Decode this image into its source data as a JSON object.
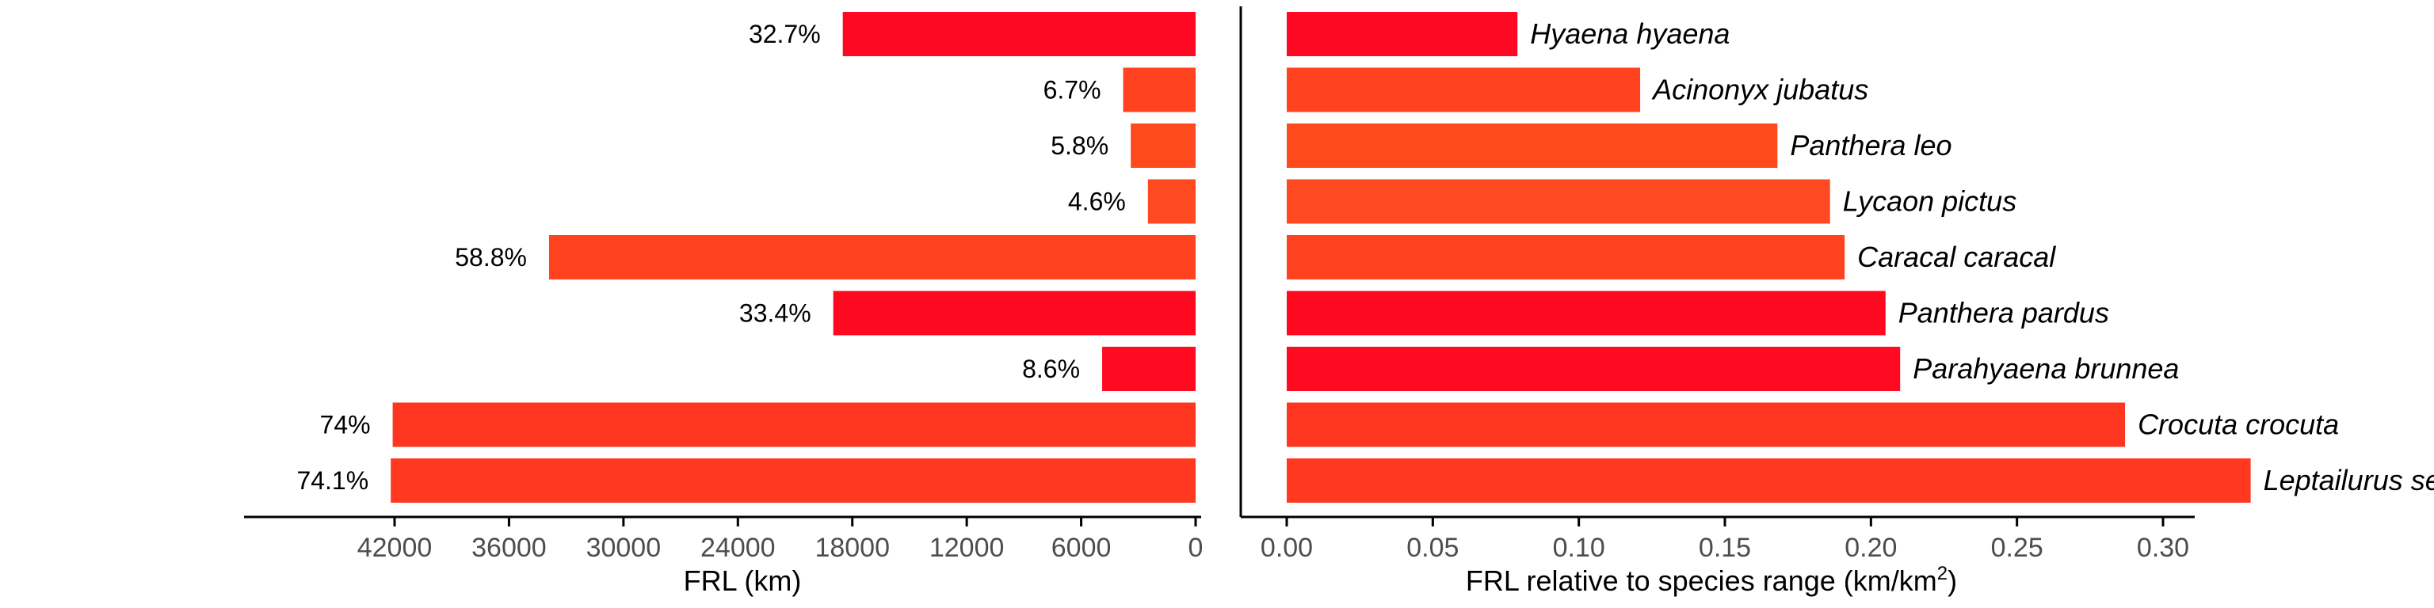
{
  "chart_data": [
    {
      "type": "bar",
      "orientation": "horizontal",
      "direction": "right-to-left",
      "categories": [
        "Hyaena hyaena",
        "Acinonyx jubatus",
        "Panthera leo",
        "Lycaon pictus",
        "Caracal caracal",
        "Panthera pardus",
        "Parahyaena brunnea",
        "Crocuta crocuta",
        "Leptailurus serval"
      ],
      "values": [
        18500,
        3800,
        3400,
        2500,
        33900,
        19000,
        4900,
        42100,
        42200
      ],
      "data_labels": [
        "32.7%",
        "6.7%",
        "5.8%",
        "4.6%",
        "58.8%",
        "33.4%",
        "8.6%",
        "74%",
        "74.1%"
      ],
      "bar_colors": [
        "#ff0823",
        "#ff4320",
        "#ff4a1e",
        "#ff4920",
        "#ff421f",
        "#ff0920",
        "#ff0a21",
        "#ff361f",
        "#ff3920"
      ],
      "xlabel": "FRL (km)",
      "xlim": [
        0,
        44500
      ],
      "xticks": [
        42000,
        36000,
        30000,
        24000,
        18000,
        12000,
        6000,
        0
      ],
      "xtick_labels": [
        "42000",
        "36000",
        "30000",
        "24000",
        "18000",
        "12000",
        "6000",
        "0"
      ],
      "grid": false
    },
    {
      "type": "bar",
      "orientation": "horizontal",
      "categories": [
        "Hyaena hyaena",
        "Acinonyx jubatus",
        "Panthera leo",
        "Lycaon pictus",
        "Caracal caracal",
        "Panthera pardus",
        "Parahyaena brunnea",
        "Crocuta crocuta",
        "Leptailurus serval"
      ],
      "values": [
        0.079,
        0.121,
        0.168,
        0.186,
        0.191,
        0.205,
        0.21,
        0.287,
        0.33
      ],
      "bar_colors": [
        "#ff0823",
        "#ff4320",
        "#ff4a1e",
        "#ff4920",
        "#ff421f",
        "#ff0920",
        "#ff0a21",
        "#ff361f",
        "#ff3920"
      ],
      "xlabel_main": "FRL relative to species range (km/km",
      "xlabel_sup": "2",
      "xlabel_tail": ")",
      "xlim": [
        0,
        0.34
      ],
      "xticks": [
        0,
        0.05,
        0.1,
        0.15,
        0.2,
        0.25,
        0.3
      ],
      "xtick_labels": [
        "0.00",
        "0.05",
        "0.10",
        "0.15",
        "0.20",
        "0.25",
        "0.30"
      ],
      "grid": false
    }
  ]
}
